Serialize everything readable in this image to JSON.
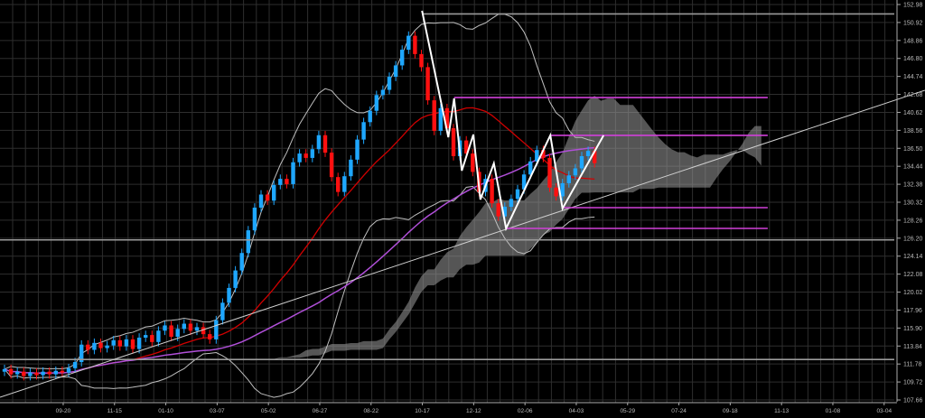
{
  "chart_data": {
    "type": "candlestick",
    "title": "",
    "interval": "weekly",
    "ylim": [
      107.66,
      152.98
    ],
    "y_ticks": [
      "152.98",
      "150.92",
      "148.86",
      "146.80",
      "144.74",
      "142.68",
      "140.62",
      "138.56",
      "136.50",
      "134.44",
      "132.38",
      "130.32",
      "128.26",
      "126.20",
      "124.14",
      "122.08",
      "120.02",
      "117.96",
      "115.90",
      "113.84",
      "111.78",
      "109.72",
      "107.66"
    ],
    "x_ticks": [
      "09-20",
      "11-15",
      "01-10",
      "03-07",
      "05-02",
      "06-27",
      "08-22",
      "10-17",
      "12-12",
      "02-06",
      "04-03",
      "05-29",
      "07-24",
      "09-18",
      "11-13",
      "01-08",
      "03-04"
    ],
    "x_tick_first_index": 9.15,
    "x_tick_step_bars": 8,
    "grid": true,
    "colors": {
      "up": "#1ea7ff",
      "down": "#ff1010",
      "ma20": "#d00000",
      "ma_long": "#b04fd8",
      "bands": "#bfbfbf",
      "cloud": "#9a9a9a",
      "zigzag": "#ffffff",
      "levels": "#d040d8",
      "hlines": "#9a9a9a",
      "trend": "#cfcfcf",
      "grid": "#2e2e2e"
    },
    "closes": [
      111.2,
      110.6,
      110.9,
      110.4,
      110.8,
      110.5,
      110.9,
      110.6,
      111.0,
      110.8,
      111.3,
      112.0,
      114.0,
      113.4,
      114.2,
      113.6,
      113.9,
      114.5,
      113.8,
      114.6,
      113.5,
      114.8,
      115.1,
      114.3,
      115.6,
      116.2,
      114.9,
      115.8,
      116.4,
      115.6,
      116.0,
      115.2,
      114.6,
      116.8,
      118.8,
      120.5,
      122.5,
      124.5,
      127.1,
      129.7,
      131.2,
      130.5,
      132.3,
      133.0,
      132.4,
      134.9,
      135.9,
      135.4,
      136.4,
      138.0,
      136.0,
      133.2,
      131.5,
      133.3,
      135.2,
      137.5,
      139.5,
      140.8,
      142.6,
      143.2,
      144.7,
      146.0,
      147.8,
      149.4,
      147.3,
      145.8,
      142.0,
      138.5,
      141.1,
      138.8,
      135.6,
      137.4,
      135.9,
      133.8,
      131.5,
      133.0,
      130.2,
      128.7,
      129.8,
      130.7,
      131.8,
      133.5,
      135.0,
      136.3,
      135.4,
      132.0,
      131.0,
      132.5,
      133.4,
      134.2,
      135.6,
      136.2,
      134.8
    ],
    "ma_periods": {
      "bands": 20,
      "band_width_sd": 2,
      "long": 50
    },
    "ichimoku": {
      "tenkan": 9,
      "kijun": 26,
      "span_b": 52,
      "shift": 26
    },
    "zigzag": [
      [
        65.1,
        152.26
      ],
      [
        69.2,
        137.77
      ],
      [
        70.1,
        142.22
      ],
      [
        71.3,
        133.94
      ],
      [
        73.1,
        138.08
      ],
      [
        74.2,
        130.63
      ],
      [
        76.3,
        134.77
      ],
      [
        78.2,
        127.32
      ],
      [
        85.1,
        137.98
      ],
      [
        87.0,
        129.6
      ],
      [
        93.4,
        137.98
      ]
    ],
    "trendline": [
      [
        -0.7,
        107.97
      ],
      [
        143.5,
        143.15
      ]
    ],
    "levels": [
      {
        "price": 142.32,
        "from": 70.1,
        "to": 119
      },
      {
        "price": 137.98,
        "from": 85.1,
        "to": 119
      },
      {
        "price": 129.7,
        "from": 87.0,
        "to": 119
      },
      {
        "price": 127.32,
        "from": 78.2,
        "to": 119
      }
    ],
    "hlines": [
      {
        "price": 151.9,
        "from": 65.1,
        "to": 139
      },
      {
        "price": 126.0,
        "from": -1,
        "to": 139
      },
      {
        "price": 112.3,
        "from": -1,
        "to": 139
      }
    ]
  }
}
